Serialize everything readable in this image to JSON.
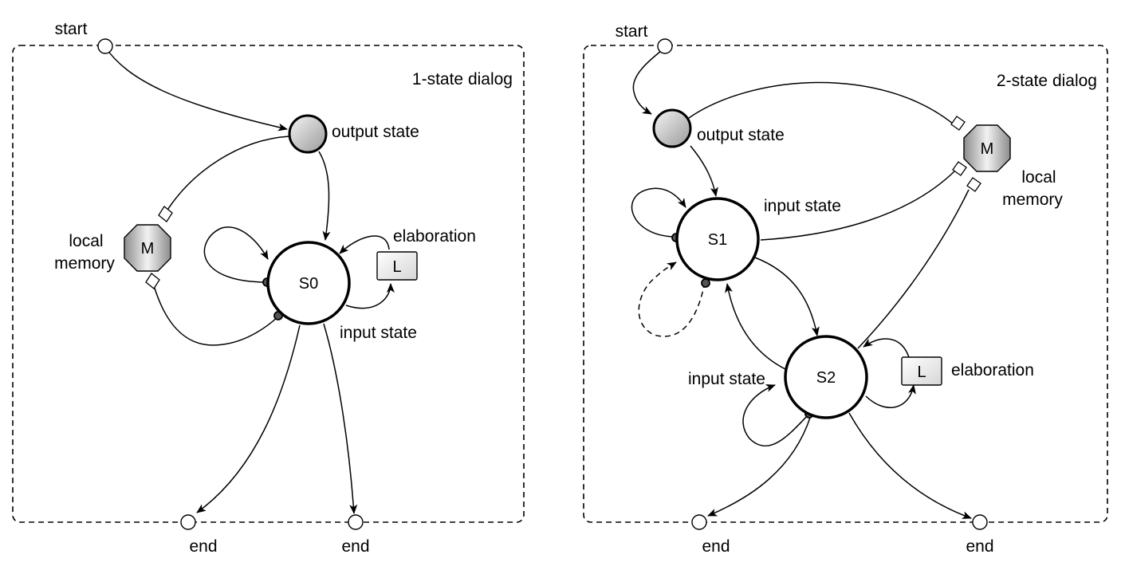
{
  "panels": [
    {
      "title": "1-state dialog",
      "start_label": "start",
      "end_labels": [
        "end",
        "end"
      ],
      "output_state_label": "output state",
      "memory_label_line1": "local",
      "memory_label_line2": "memory",
      "memory_symbol": "M",
      "states": [
        {
          "name": "S0"
        }
      ],
      "input_state_label": "input state",
      "elaboration_label": "elaboration",
      "elaboration_symbol": "L"
    },
    {
      "title": "2-state dialog",
      "start_label": "start",
      "end_labels": [
        "end",
        "end"
      ],
      "output_state_label": "output state",
      "memory_label_line1": "local",
      "memory_label_line2": "memory",
      "memory_symbol": "M",
      "states": [
        {
          "name": "S1"
        },
        {
          "name": "S2"
        }
      ],
      "input_state_labels": [
        "input state",
        "input state"
      ],
      "elaboration_label": "elaboration",
      "elaboration_symbol": "L"
    }
  ]
}
